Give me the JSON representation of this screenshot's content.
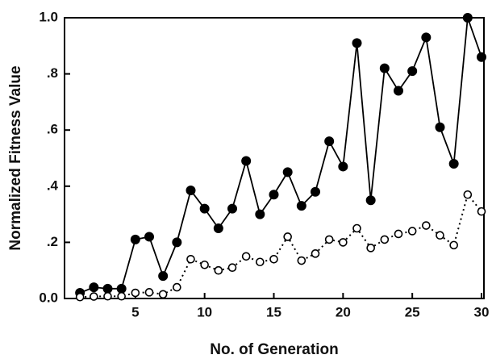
{
  "chart_data": {
    "type": "line",
    "xlabel": "No. of Generation",
    "ylabel": "Normalized Fitness Value",
    "x": [
      1,
      2,
      3,
      4,
      5,
      6,
      7,
      8,
      9,
      10,
      11,
      12,
      13,
      14,
      15,
      16,
      17,
      18,
      19,
      20,
      21,
      22,
      23,
      24,
      25,
      26,
      27,
      28,
      29,
      30
    ],
    "series": [
      {
        "color": "#000000",
        "line_style": "solid",
        "marker": "filled",
        "values": [
          0.02,
          0.04,
          0.035,
          0.035,
          0.21,
          0.22,
          0.08,
          0.2,
          0.385,
          0.32,
          0.25,
          0.32,
          0.49,
          0.3,
          0.37,
          0.45,
          0.33,
          0.38,
          0.56,
          0.47,
          0.91,
          0.35,
          0.82,
          0.74,
          0.81,
          0.93,
          0.61,
          0.48,
          1.0,
          0.86
        ]
      },
      {
        "color": "#000000",
        "line_style": "dotted",
        "marker": "open",
        "values": [
          0.005,
          0.007,
          0.008,
          0.008,
          0.02,
          0.022,
          0.015,
          0.04,
          0.14,
          0.12,
          0.1,
          0.11,
          0.15,
          0.13,
          0.14,
          0.22,
          0.135,
          0.16,
          0.21,
          0.2,
          0.25,
          0.18,
          0.21,
          0.23,
          0.24,
          0.26,
          0.225,
          0.19,
          0.37,
          0.31
        ]
      }
    ],
    "xlim": [
      0,
      30
    ],
    "xticks": [
      5,
      10,
      15,
      20,
      25,
      30
    ],
    "ylim": [
      0,
      1
    ],
    "yticks": [
      {
        "value": 0,
        "label": "0.0"
      },
      {
        "value": 0.2,
        "label": ".2"
      },
      {
        "value": 0.4,
        "label": ".4"
      },
      {
        "value": 0.6,
        "label": ".6"
      },
      {
        "value": 0.8,
        "label": ".8"
      },
      {
        "value": 1,
        "label": "1.0"
      }
    ],
    "grid": false
  }
}
